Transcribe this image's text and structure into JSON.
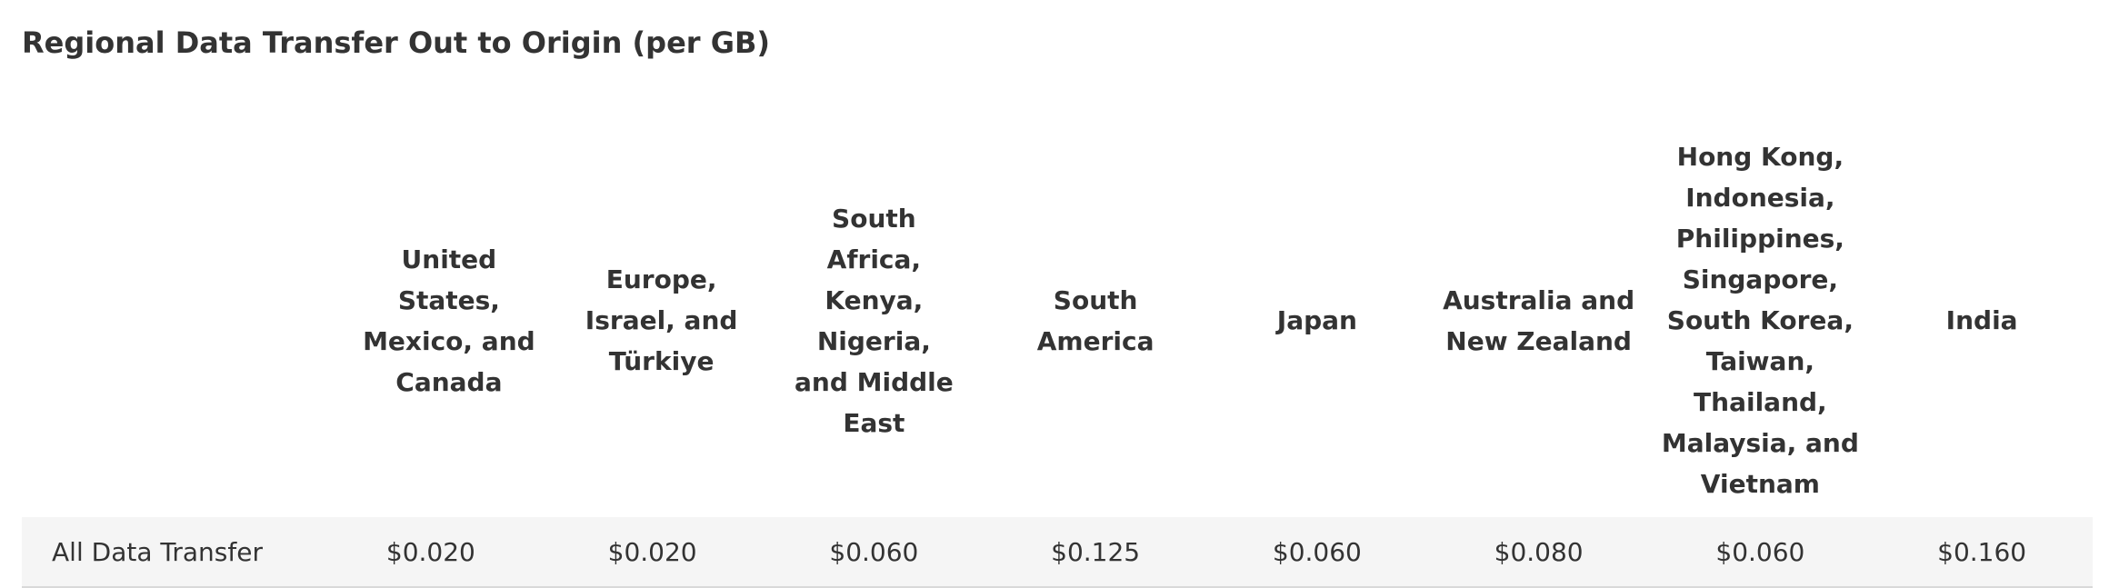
{
  "title": "Regional Data Transfer Out to Origin (per GB)",
  "table": {
    "headers": [
      "",
      "United States, Mexico, and Canada",
      "Europe, Israel, and Türkiye",
      "South Africa, Kenya, Nigeria,  and Middle East",
      "South America",
      "Japan",
      "Australia and New Zealand",
      "Hong Kong, Indonesia, Philippines, Singapore, South Korea, Taiwan, Thailand, Malaysia, and Vietnam",
      "India"
    ],
    "rows": [
      {
        "label": "All Data Transfer",
        "values": [
          "$0.020",
          "$0.020",
          "$0.060",
          "$0.125",
          "$0.060",
          "$0.080",
          "$0.060",
          "$0.160"
        ]
      }
    ]
  }
}
